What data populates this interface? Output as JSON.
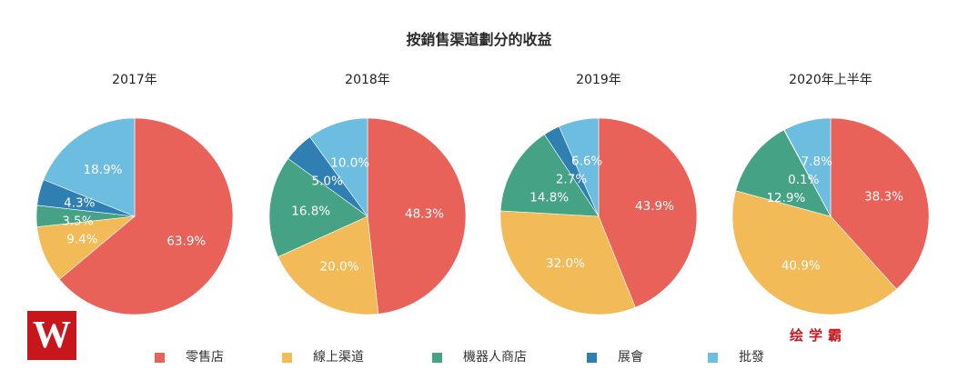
{
  "chart_data": {
    "type": "pie",
    "title": "按銷售渠道劃分的收益",
    "legend_position": "bottom",
    "categories": [
      "零售店",
      "線上渠道",
      "機器人商店",
      "展會",
      "批發"
    ],
    "colors": [
      "#e8625a",
      "#f2bb58",
      "#45a284",
      "#2f7fb3",
      "#6dbde0"
    ],
    "pies": [
      {
        "title": "2017年",
        "values": [
          63.9,
          9.4,
          3.5,
          4.3,
          18.9
        ],
        "labels": [
          "63.9%",
          "9.4%",
          "3.5%",
          "4.3%",
          "18.9%"
        ]
      },
      {
        "title": "2018年",
        "values": [
          48.3,
          20.0,
          16.8,
          5.0,
          10.0
        ],
        "labels": [
          "48.3%",
          "20.0%",
          "16.8%",
          "5.0%",
          "10.0%"
        ]
      },
      {
        "title": "2019年",
        "values": [
          43.9,
          32.0,
          14.8,
          2.7,
          6.6
        ],
        "labels": [
          "43.9%",
          "32.0%",
          "14.8%",
          "2.7%",
          "6.6%"
        ]
      },
      {
        "title": "2020年上半年",
        "values": [
          38.3,
          40.9,
          12.9,
          0.1,
          7.8
        ],
        "labels": [
          "38.3%",
          "40.9%",
          "12.9%",
          "0.1%",
          "7.8%"
        ]
      }
    ]
  },
  "watermark": {
    "logo_letter": "W",
    "text": "绘学霸"
  }
}
